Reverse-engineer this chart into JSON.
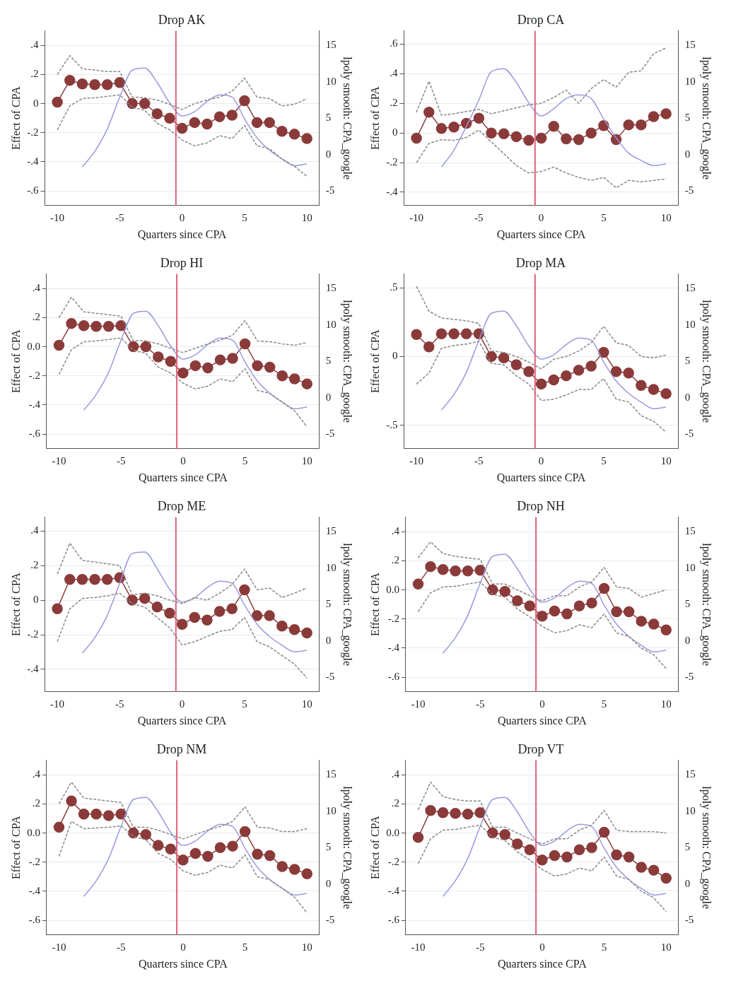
{
  "chart_data": [
    {
      "type": "line",
      "title": "Drop AK",
      "xlabel": "Quarters since CPA",
      "ylabel": "Effect of CPA",
      "y2label": "lpoly smooth: CPA_google",
      "x": [
        -10,
        -9,
        -8,
        -7,
        -6,
        -5,
        -4,
        -3,
        -2,
        -1,
        0,
        1,
        2,
        3,
        4,
        5,
        6,
        7,
        8,
        9,
        10
      ],
      "xlim": [
        -11,
        11
      ],
      "xticks": [
        -10,
        -5,
        0,
        5,
        10
      ],
      "ylim": [
        -0.7,
        0.5
      ],
      "yticks": [
        {
          "value": -0.6,
          "label": "-.6"
        },
        {
          "value": -0.4,
          "label": "-.4"
        },
        {
          "value": -0.2,
          "label": "-.2"
        },
        {
          "value": 0,
          "label": "0"
        },
        {
          "value": 0.2,
          "label": ".2"
        },
        {
          "value": 0.4,
          "label": ".4"
        }
      ],
      "y2lim": [
        -7,
        17
      ],
      "y2ticks": [
        -5,
        0,
        5,
        10,
        15
      ],
      "grid": "y",
      "ref_lines": [
        {
          "axis": "x",
          "value": -0.5,
          "color": "#e0607a"
        }
      ],
      "series": [
        {
          "color": "#888888",
          "line_style": "dashed",
          "marker": "none",
          "values": [
            0.2,
            0.33,
            0.24,
            0.23,
            0.22,
            0.22,
            0.045,
            0.04,
            0.025,
            -0.005,
            -0.04,
            0,
            0.025,
            0.045,
            0.085,
            0.175,
            0.045,
            0.035,
            -0.015,
            -0.005,
            0.035
          ]
        },
        {
          "color": "#888888",
          "line_style": "dashed",
          "marker": "none",
          "values": [
            -0.18,
            -0.015,
            0.035,
            0.04,
            0.05,
            0.06,
            -0.025,
            -0.045,
            -0.135,
            -0.18,
            -0.25,
            -0.29,
            -0.27,
            -0.22,
            -0.24,
            -0.15,
            -0.29,
            -0.31,
            -0.38,
            -0.43,
            -0.5
          ]
        },
        {
          "color": "#9b99e0",
          "axis": "y2",
          "marker": "none",
          "x": [
            -8,
            -7,
            -6,
            -5,
            -4,
            -3,
            -2,
            -1,
            0,
            1,
            2,
            3,
            4,
            5,
            6,
            7,
            8,
            9,
            10
          ],
          "values": [
            -1.7,
            0.45,
            3.5,
            7.9,
            11.6,
            11.9,
            9.9,
            7.1,
            5.3,
            5.9,
            7.3,
            8.2,
            7.9,
            4.9,
            2.3,
            0.6,
            -0.6,
            -1.5,
            -1.3
          ]
        },
        {
          "color": "#8b3a3a",
          "marker": "circle",
          "values": [
            0.01,
            0.16,
            0.135,
            0.13,
            0.13,
            0.145,
            0,
            0,
            -0.07,
            -0.1,
            -0.17,
            -0.13,
            -0.14,
            -0.09,
            -0.08,
            0.02,
            -0.13,
            -0.13,
            -0.19,
            -0.21,
            -0.24
          ]
        }
      ]
    },
    {
      "type": "line",
      "title": "Drop CA",
      "xlabel": "Quarters since CPA",
      "ylabel": "Effect of CPA",
      "y2label": "lpoly smooth: CPA_google",
      "x": [
        -10,
        -9,
        -8,
        -7,
        -6,
        -5,
        -4,
        -3,
        -2,
        -1,
        0,
        1,
        2,
        3,
        4,
        5,
        6,
        7,
        8,
        9,
        10
      ],
      "xlim": [
        -11,
        11
      ],
      "xticks": [
        -10,
        -5,
        0,
        5,
        10
      ],
      "ylim": [
        -0.49,
        0.69
      ],
      "yticks": [
        {
          "value": -0.4,
          "label": "-.4"
        },
        {
          "value": -0.2,
          "label": "-.2"
        },
        {
          "value": 0,
          "label": "0"
        },
        {
          "value": 0.2,
          "label": ".2"
        },
        {
          "value": 0.4,
          "label": ".4"
        },
        {
          "value": 0.6,
          "label": ".6"
        }
      ],
      "y2lim": [
        -7,
        17
      ],
      "y2ticks": [
        -5,
        0,
        5,
        10,
        15
      ],
      "grid": "y",
      "ref_lines": [
        {
          "axis": "x",
          "value": -0.5,
          "color": "#e0607a"
        }
      ],
      "series": [
        {
          "color": "#888888",
          "line_style": "dashed",
          "marker": "none",
          "values": [
            0.14,
            0.35,
            0.12,
            0.13,
            0.145,
            0.16,
            0.13,
            0.15,
            0.17,
            0.19,
            0.2,
            0.24,
            0.29,
            0.2,
            0.3,
            0.36,
            0.31,
            0.41,
            0.42,
            0.535,
            0.575
          ]
        },
        {
          "color": "#888888",
          "line_style": "dashed",
          "marker": "none",
          "values": [
            -0.2,
            -0.07,
            -0.045,
            -0.05,
            -0.03,
            0.02,
            -0.06,
            -0.14,
            -0.22,
            -0.27,
            -0.26,
            -0.23,
            -0.27,
            -0.3,
            -0.32,
            -0.3,
            -0.37,
            -0.32,
            -0.33,
            -0.32,
            -0.31
          ]
        },
        {
          "color": "#9b99e0",
          "axis": "y2",
          "marker": "none",
          "x": [
            -8,
            -7,
            -6,
            -5,
            -4,
            -3,
            -2,
            -1,
            0,
            1,
            2,
            3,
            4,
            5,
            6,
            7,
            8,
            9,
            10
          ],
          "values": [
            -1.7,
            0.6,
            3.9,
            7.5,
            11.4,
            11.8,
            9.9,
            7.1,
            5.3,
            6.3,
            7.7,
            8.2,
            7.7,
            4.9,
            2.3,
            0.2,
            -0.8,
            -1.5,
            -1.3
          ]
        },
        {
          "color": "#8b3a3a",
          "marker": "circle",
          "values": [
            -0.035,
            0.14,
            0.03,
            0.04,
            0.065,
            0.1,
            0,
            -0.005,
            -0.025,
            -0.05,
            -0.035,
            0.045,
            -0.04,
            -0.045,
            0,
            0.05,
            -0.045,
            0.055,
            0.055,
            0.11,
            0.13
          ]
        }
      ]
    },
    {
      "type": "line",
      "title": "Drop HI",
      "xlabel": "Quarters since CPA",
      "ylabel": "Effect of CPA",
      "y2label": "lpoly smooth: CPA_google",
      "x": [
        -10,
        -9,
        -8,
        -7,
        -6,
        -5,
        -4,
        -3,
        -2,
        -1,
        0,
        1,
        2,
        3,
        4,
        5,
        6,
        7,
        8,
        9,
        10
      ],
      "xlim": [
        -11,
        11
      ],
      "xticks": [
        -10,
        -5,
        0,
        5,
        10
      ],
      "ylim": [
        -0.7,
        0.5
      ],
      "yticks": [
        {
          "value": -0.6,
          "label": "-.6"
        },
        {
          "value": -0.4,
          "label": "-.4"
        },
        {
          "value": -0.2,
          "label": "-.2"
        },
        {
          "value": 0,
          "label": "0.0"
        },
        {
          "value": 0.2,
          "label": ".2"
        },
        {
          "value": 0.4,
          "label": ".4"
        }
      ],
      "y2lim": [
        -7,
        17
      ],
      "y2ticks": [
        -5,
        0,
        5,
        10,
        15
      ],
      "grid": "y",
      "ref_lines": [
        {
          "axis": "x",
          "value": -0.5,
          "color": "#e0607a"
        }
      ],
      "series": [
        {
          "color": "#888888",
          "line_style": "dashed",
          "marker": "none",
          "values": [
            0.2,
            0.34,
            0.24,
            0.23,
            0.22,
            0.21,
            0.04,
            0.04,
            0.02,
            -0.01,
            -0.04,
            -0.01,
            0.02,
            0.045,
            0.08,
            0.18,
            0.04,
            0.035,
            0.02,
            0.01,
            0.03
          ]
        },
        {
          "color": "#888888",
          "line_style": "dashed",
          "marker": "none",
          "values": [
            -0.19,
            -0.02,
            0.035,
            0.04,
            0.05,
            0.06,
            -0.025,
            -0.045,
            -0.14,
            -0.18,
            -0.25,
            -0.29,
            -0.27,
            -0.22,
            -0.24,
            -0.15,
            -0.3,
            -0.32,
            -0.38,
            -0.44,
            -0.55
          ]
        },
        {
          "color": "#9b99e0",
          "axis": "y2",
          "marker": "none",
          "x": [
            -8,
            -7,
            -6,
            -5,
            -4,
            -3,
            -2,
            -1,
            0,
            1,
            2,
            3,
            4,
            5,
            6,
            7,
            8,
            9,
            10
          ],
          "values": [
            -1.7,
            0.45,
            3.5,
            7.9,
            11.6,
            11.9,
            9.9,
            7.1,
            5.3,
            5.9,
            7.3,
            8.2,
            7.9,
            4.9,
            2.3,
            0.6,
            -0.6,
            -1.5,
            -1.3
          ]
        },
        {
          "color": "#8b3a3a",
          "marker": "circle",
          "values": [
            0.01,
            0.16,
            0.145,
            0.14,
            0.14,
            0.145,
            0,
            0,
            -0.07,
            -0.1,
            -0.18,
            -0.13,
            -0.145,
            -0.09,
            -0.08,
            0.02,
            -0.13,
            -0.14,
            -0.2,
            -0.22,
            -0.255
          ]
        }
      ]
    },
    {
      "type": "line",
      "title": "Drop MA",
      "xlabel": "Quarters since CPA",
      "ylabel": "Effect of CPA",
      "y2label": "lpoly smooth: CPA_google",
      "x": [
        -10,
        -9,
        -8,
        -7,
        -6,
        -5,
        -4,
        -3,
        -2,
        -1,
        0,
        1,
        2,
        3,
        4,
        5,
        6,
        7,
        8,
        9,
        10
      ],
      "xlim": [
        -11,
        11
      ],
      "xticks": [
        -10,
        -5,
        0,
        5,
        10
      ],
      "ylim": [
        -0.67,
        0.6
      ],
      "yticks": [
        {
          "value": -0.5,
          "label": "-.5"
        },
        {
          "value": 0,
          "label": "0"
        },
        {
          "value": 0.5,
          "label": ".5"
        }
      ],
      "y2lim": [
        -7,
        17
      ],
      "y2ticks": [
        -5,
        0,
        5,
        10,
        15
      ],
      "grid": "y",
      "ref_lines": [
        {
          "axis": "x",
          "value": -0.5,
          "color": "#e0607a"
        }
      ],
      "series": [
        {
          "color": "#888888",
          "line_style": "dashed",
          "marker": "none",
          "values": [
            0.51,
            0.33,
            0.28,
            0.27,
            0.26,
            0.24,
            0.04,
            0.03,
            0,
            -0.04,
            -0.09,
            -0.02,
            0,
            0.04,
            0.1,
            0.22,
            0.1,
            0.08,
            0,
            -0.01,
            0.01
          ]
        },
        {
          "color": "#888888",
          "line_style": "dashed",
          "marker": "none",
          "values": [
            -0.2,
            -0.12,
            0.06,
            0.08,
            0.09,
            0.11,
            -0.05,
            -0.06,
            -0.14,
            -0.2,
            -0.32,
            -0.31,
            -0.28,
            -0.24,
            -0.24,
            -0.16,
            -0.31,
            -0.33,
            -0.43,
            -0.47,
            -0.55
          ]
        },
        {
          "color": "#9b99e0",
          "axis": "y2",
          "marker": "none",
          "x": [
            -8,
            -7,
            -6,
            -5,
            -4,
            -3,
            -2,
            -1,
            0,
            1,
            2,
            3,
            4,
            5,
            6,
            7,
            8,
            9,
            10
          ],
          "values": [
            -1.7,
            0.45,
            3.5,
            7.9,
            11.6,
            11.9,
            9.9,
            7.1,
            5.3,
            5.9,
            7.3,
            8.2,
            7.9,
            4.9,
            2.3,
            0.6,
            -0.6,
            -1.5,
            -1.3
          ]
        },
        {
          "color": "#8b3a3a",
          "marker": "circle",
          "values": [
            0.16,
            0.07,
            0.165,
            0.165,
            0.165,
            0.165,
            0,
            -0.01,
            -0.06,
            -0.11,
            -0.2,
            -0.17,
            -0.14,
            -0.1,
            -0.07,
            0.03,
            -0.11,
            -0.12,
            -0.21,
            -0.24,
            -0.27
          ]
        }
      ]
    },
    {
      "type": "line",
      "title": "Drop ME",
      "xlabel": "Quarters since CPA",
      "ylabel": "Effect of CPA",
      "y2label": "lpoly smooth: CPA_google",
      "x": [
        -10,
        -9,
        -8,
        -7,
        -6,
        -5,
        -4,
        -3,
        -2,
        -1,
        0,
        1,
        2,
        3,
        4,
        5,
        6,
        7,
        8,
        9,
        10
      ],
      "xlim": [
        -11,
        11
      ],
      "xticks": [
        -10,
        -5,
        0,
        5,
        10
      ],
      "ylim": [
        -0.53,
        0.48
      ],
      "yticks": [
        {
          "value": -0.4,
          "label": "-.4"
        },
        {
          "value": -0.2,
          "label": "-.2"
        },
        {
          "value": 0,
          "label": "0"
        },
        {
          "value": 0.2,
          "label": ".2"
        },
        {
          "value": 0.4,
          "label": ".4"
        }
      ],
      "y2lim": [
        -7,
        17
      ],
      "y2ticks": [
        -5,
        0,
        5,
        10,
        15
      ],
      "grid": "y",
      "ref_lines": [
        {
          "axis": "x",
          "value": -0.5,
          "color": "#e0607a"
        }
      ],
      "series": [
        {
          "color": "#888888",
          "line_style": "dashed",
          "marker": "none",
          "values": [
            0.15,
            0.33,
            0.23,
            0.22,
            0.21,
            0.2,
            0.03,
            0.04,
            0.025,
            0,
            -0.02,
            0.015,
            0,
            0.04,
            0.09,
            0.18,
            0.06,
            0.07,
            0.015,
            0.04,
            0.07
          ]
        },
        {
          "color": "#888888",
          "line_style": "dashed",
          "marker": "none",
          "values": [
            -0.24,
            -0.05,
            0.01,
            0.015,
            0.025,
            0.04,
            -0.02,
            -0.04,
            -0.1,
            -0.16,
            -0.26,
            -0.24,
            -0.21,
            -0.18,
            -0.17,
            -0.1,
            -0.24,
            -0.27,
            -0.32,
            -0.37,
            -0.45
          ]
        },
        {
          "color": "#9b99e0",
          "axis": "y2",
          "marker": "none",
          "x": [
            -8,
            -7,
            -6,
            -5,
            -4,
            -3,
            -2,
            -1,
            0,
            1,
            2,
            3,
            4,
            5,
            6,
            7,
            8,
            9,
            10
          ],
          "values": [
            -1.7,
            0.45,
            3.5,
            7.9,
            12,
            12.2,
            9.9,
            7.1,
            5.3,
            5.9,
            7.3,
            8.2,
            7.9,
            4.9,
            2.3,
            0.6,
            -0.6,
            -1.5,
            -1.3
          ]
        },
        {
          "color": "#8b3a3a",
          "marker": "circle",
          "values": [
            -0.05,
            0.12,
            0.12,
            0.12,
            0.12,
            0.13,
            0,
            0.01,
            -0.04,
            -0.075,
            -0.14,
            -0.1,
            -0.115,
            -0.065,
            -0.05,
            0.06,
            -0.09,
            -0.09,
            -0.15,
            -0.17,
            -0.19
          ]
        }
      ]
    },
    {
      "type": "line",
      "title": "Drop NH",
      "xlabel": "Quarters since CPA",
      "ylabel": "Effect of CPA",
      "y2label": "lpoly smooth: CPA_google",
      "x": [
        -10,
        -9,
        -8,
        -7,
        -6,
        -5,
        -4,
        -3,
        -2,
        -1,
        0,
        1,
        2,
        3,
        4,
        5,
        6,
        7,
        8,
        9,
        10
      ],
      "xlim": [
        -11,
        11
      ],
      "xticks": [
        -10,
        -5,
        0,
        5,
        10
      ],
      "ylim": [
        -0.7,
        0.5
      ],
      "yticks": [
        {
          "value": -0.6,
          "label": "-.6"
        },
        {
          "value": -0.4,
          "label": "-.4"
        },
        {
          "value": -0.2,
          "label": "-.2"
        },
        {
          "value": 0,
          "label": "0.0"
        },
        {
          "value": 0.2,
          "label": ".2"
        },
        {
          "value": 0.4,
          "label": ".4"
        }
      ],
      "y2lim": [
        -7,
        17
      ],
      "y2ticks": [
        -5,
        0,
        5,
        10,
        15
      ],
      "grid": "y",
      "ref_lines": [
        {
          "axis": "x",
          "value": -0.5,
          "color": "#e0607a"
        }
      ],
      "series": [
        {
          "color": "#888888",
          "line_style": "dashed",
          "marker": "none",
          "values": [
            0.22,
            0.33,
            0.25,
            0.23,
            0.22,
            0.21,
            0.04,
            0.04,
            0,
            -0.04,
            -0.075,
            -0.04,
            -0.04,
            0.02,
            0.055,
            0.155,
            0.02,
            0.01,
            -0.05,
            -0.025,
            0
          ]
        },
        {
          "color": "#888888",
          "line_style": "dashed",
          "marker": "none",
          "values": [
            -0.15,
            -0.02,
            0.02,
            0.025,
            0.04,
            0.055,
            -0.03,
            -0.05,
            -0.13,
            -0.185,
            -0.25,
            -0.295,
            -0.28,
            -0.24,
            -0.26,
            -0.165,
            -0.295,
            -0.32,
            -0.4,
            -0.445,
            -0.54
          ]
        },
        {
          "color": "#9b99e0",
          "axis": "y2",
          "marker": "none",
          "x": [
            -8,
            -7,
            -6,
            -5,
            -4,
            -3,
            -2,
            -1,
            0,
            1,
            2,
            3,
            4,
            5,
            6,
            7,
            8,
            9,
            10
          ],
          "values": [
            -1.7,
            0.45,
            3.5,
            7.9,
            11.6,
            11.9,
            9.9,
            7.1,
            5.3,
            5.9,
            7.3,
            8.2,
            7.9,
            4.9,
            2.3,
            0.6,
            -0.6,
            -1.5,
            -1.3
          ]
        },
        {
          "color": "#8b3a3a",
          "marker": "circle",
          "values": [
            0.04,
            0.16,
            0.14,
            0.13,
            0.13,
            0.135,
            0,
            -0.01,
            -0.075,
            -0.11,
            -0.18,
            -0.145,
            -0.165,
            -0.11,
            -0.09,
            0.01,
            -0.15,
            -0.15,
            -0.215,
            -0.235,
            -0.275
          ]
        }
      ]
    },
    {
      "type": "line",
      "title": "Drop NM",
      "xlabel": "Quarters since CPA",
      "ylabel": "Effect of CPA",
      "y2label": "lpoly smooth: CPA_google",
      "x": [
        -10,
        -9,
        -8,
        -7,
        -6,
        -5,
        -4,
        -3,
        -2,
        -1,
        0,
        1,
        2,
        3,
        4,
        5,
        6,
        7,
        8,
        9,
        10
      ],
      "xlim": [
        -11,
        11
      ],
      "xticks": [
        -10,
        -5,
        0,
        5,
        10
      ],
      "ylim": [
        -0.7,
        0.5
      ],
      "yticks": [
        {
          "value": -0.6,
          "label": "-.6"
        },
        {
          "value": -0.4,
          "label": "-.4"
        },
        {
          "value": -0.2,
          "label": "-.2"
        },
        {
          "value": 0,
          "label": "0.0"
        },
        {
          "value": 0.2,
          "label": ".2"
        },
        {
          "value": 0.4,
          "label": ".4"
        }
      ],
      "y2lim": [
        -7,
        17
      ],
      "y2ticks": [
        -5,
        0,
        5,
        10,
        15
      ],
      "grid": "y",
      "ref_lines": [
        {
          "axis": "x",
          "value": -0.5,
          "color": "#e0607a"
        }
      ],
      "series": [
        {
          "color": "#888888",
          "line_style": "dashed",
          "marker": "none",
          "values": [
            0.2,
            0.35,
            0.24,
            0.23,
            0.22,
            0.21,
            0.04,
            0.04,
            0.02,
            -0.01,
            -0.04,
            -0.01,
            0.02,
            0.045,
            0.08,
            0.18,
            0.04,
            0.035,
            0.01,
            0.01,
            0.03
          ]
        },
        {
          "color": "#888888",
          "line_style": "dashed",
          "marker": "none",
          "values": [
            -0.16,
            0.08,
            0.03,
            0.035,
            0.04,
            0.05,
            -0.025,
            -0.045,
            -0.14,
            -0.18,
            -0.26,
            -0.29,
            -0.27,
            -0.22,
            -0.24,
            -0.15,
            -0.3,
            -0.32,
            -0.38,
            -0.44,
            -0.55
          ]
        },
        {
          "color": "#9b99e0",
          "axis": "y2",
          "marker": "none",
          "x": [
            -8,
            -7,
            -6,
            -5,
            -4,
            -3,
            -2,
            -1,
            0,
            1,
            2,
            3,
            4,
            5,
            6,
            7,
            8,
            9,
            10
          ],
          "values": [
            -1.7,
            0.45,
            3.5,
            7.9,
            11.6,
            11.9,
            9.9,
            7.1,
            5.3,
            5.9,
            7.3,
            8.2,
            7.9,
            4.9,
            2.3,
            0.6,
            -0.6,
            -1.5,
            -1.3
          ]
        },
        {
          "color": "#8b3a3a",
          "marker": "circle",
          "values": [
            0.04,
            0.22,
            0.13,
            0.13,
            0.12,
            0.13,
            0,
            -0.01,
            -0.085,
            -0.11,
            -0.185,
            -0.14,
            -0.16,
            -0.1,
            -0.09,
            0.01,
            -0.145,
            -0.155,
            -0.23,
            -0.25,
            -0.28
          ]
        }
      ]
    },
    {
      "type": "line",
      "title": "Drop VT",
      "xlabel": "Quarters since CPA",
      "ylabel": "Effect of CPA",
      "y2label": "lpoly smooth: CPA_google",
      "x": [
        -10,
        -9,
        -8,
        -7,
        -6,
        -5,
        -4,
        -3,
        -2,
        -1,
        0,
        1,
        2,
        3,
        4,
        5,
        6,
        7,
        8,
        9,
        10
      ],
      "xlim": [
        -11,
        11
      ],
      "xticks": [
        -10,
        -5,
        0,
        5,
        10
      ],
      "ylim": [
        -0.7,
        0.5
      ],
      "yticks": [
        {
          "value": -0.6,
          "label": "-.6"
        },
        {
          "value": -0.4,
          "label": "-.4"
        },
        {
          "value": -0.2,
          "label": "-.2"
        },
        {
          "value": 0,
          "label": "0.0"
        },
        {
          "value": 0.2,
          "label": ".2"
        },
        {
          "value": 0.4,
          "label": ".4"
        }
      ],
      "y2lim": [
        -7,
        17
      ],
      "y2ticks": [
        -5,
        0,
        5,
        10,
        15
      ],
      "grid": "y",
      "ref_lines": [
        {
          "axis": "x",
          "value": -0.5,
          "color": "#e0607a"
        }
      ],
      "series": [
        {
          "color": "#888888",
          "line_style": "dashed",
          "marker": "none",
          "values": [
            0.16,
            0.35,
            0.25,
            0.23,
            0.22,
            0.22,
            0.04,
            0.04,
            0,
            -0.04,
            -0.075,
            -0.04,
            -0.04,
            0.02,
            0.055,
            0.155,
            0.02,
            0.01,
            0.01,
            0.01,
            0.0
          ]
        },
        {
          "color": "#888888",
          "line_style": "dashed",
          "marker": "none",
          "values": [
            -0.21,
            -0.04,
            0.02,
            0.025,
            0.04,
            0.055,
            -0.03,
            -0.05,
            -0.13,
            -0.185,
            -0.25,
            -0.295,
            -0.28,
            -0.24,
            -0.26,
            -0.165,
            -0.295,
            -0.32,
            -0.4,
            -0.445,
            -0.54
          ]
        },
        {
          "color": "#9b99e0",
          "axis": "y2",
          "marker": "none",
          "x": [
            -8,
            -7,
            -6,
            -5,
            -4,
            -3,
            -2,
            -1,
            0,
            1,
            2,
            3,
            4,
            5,
            6,
            7,
            8,
            9,
            10
          ],
          "values": [
            -1.7,
            0.45,
            3.5,
            7.9,
            11.6,
            11.9,
            9.9,
            7.1,
            5.3,
            5.9,
            7.3,
            8.2,
            7.9,
            4.9,
            2.3,
            0.6,
            -0.6,
            -1.5,
            -1.3
          ]
        },
        {
          "color": "#8b3a3a",
          "marker": "circle",
          "values": [
            -0.03,
            0.155,
            0.14,
            0.135,
            0.13,
            0.14,
            0,
            -0.01,
            -0.075,
            -0.115,
            -0.185,
            -0.155,
            -0.165,
            -0.115,
            -0.1,
            0.005,
            -0.15,
            -0.165,
            -0.235,
            -0.255,
            -0.31
          ]
        }
      ]
    }
  ]
}
